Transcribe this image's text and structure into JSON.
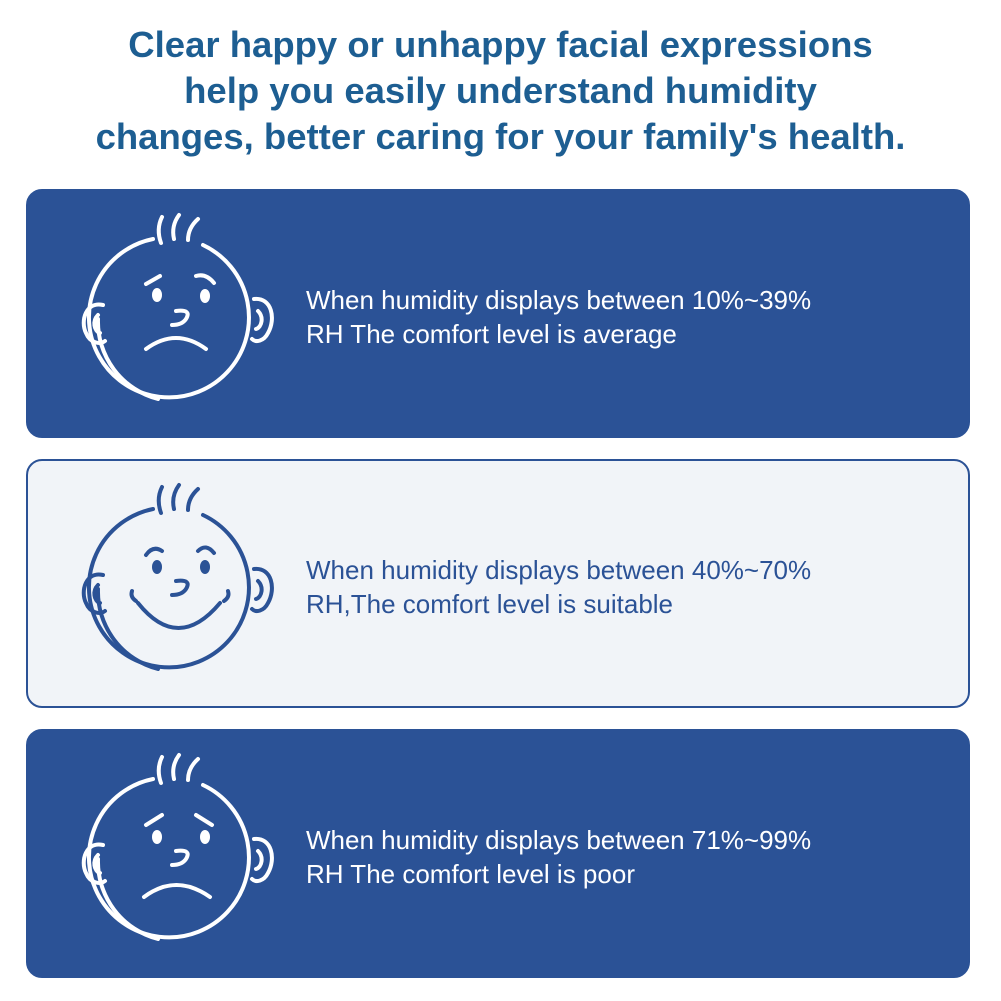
{
  "headline": {
    "line1": "Clear happy or unhappy facial expressions",
    "line2": "help you easily understand humidity",
    "line3": "changes, better caring for your family's health."
  },
  "cards": [
    {
      "icon": "worried-face-icon",
      "line1": "When humidity displays between 10%~39%",
      "line2": "RH The comfort level is average",
      "background": "#2b5296",
      "text_color": "#ffffff"
    },
    {
      "icon": "smiling-face-icon",
      "line1": "When humidity displays between 40%~70%",
      "line2": "RH,The comfort level is suitable",
      "background": "#f1f4f8",
      "text_color": "#2b5296"
    },
    {
      "icon": "sad-face-icon",
      "line1": "When humidity displays between 71%~99%",
      "line2": "RH The comfort level is poor",
      "background": "#2b5296",
      "text_color": "#ffffff"
    }
  ],
  "colors": {
    "headline": "#1d5e92",
    "card_dark": "#2b5296",
    "card_light": "#f1f4f8"
  }
}
